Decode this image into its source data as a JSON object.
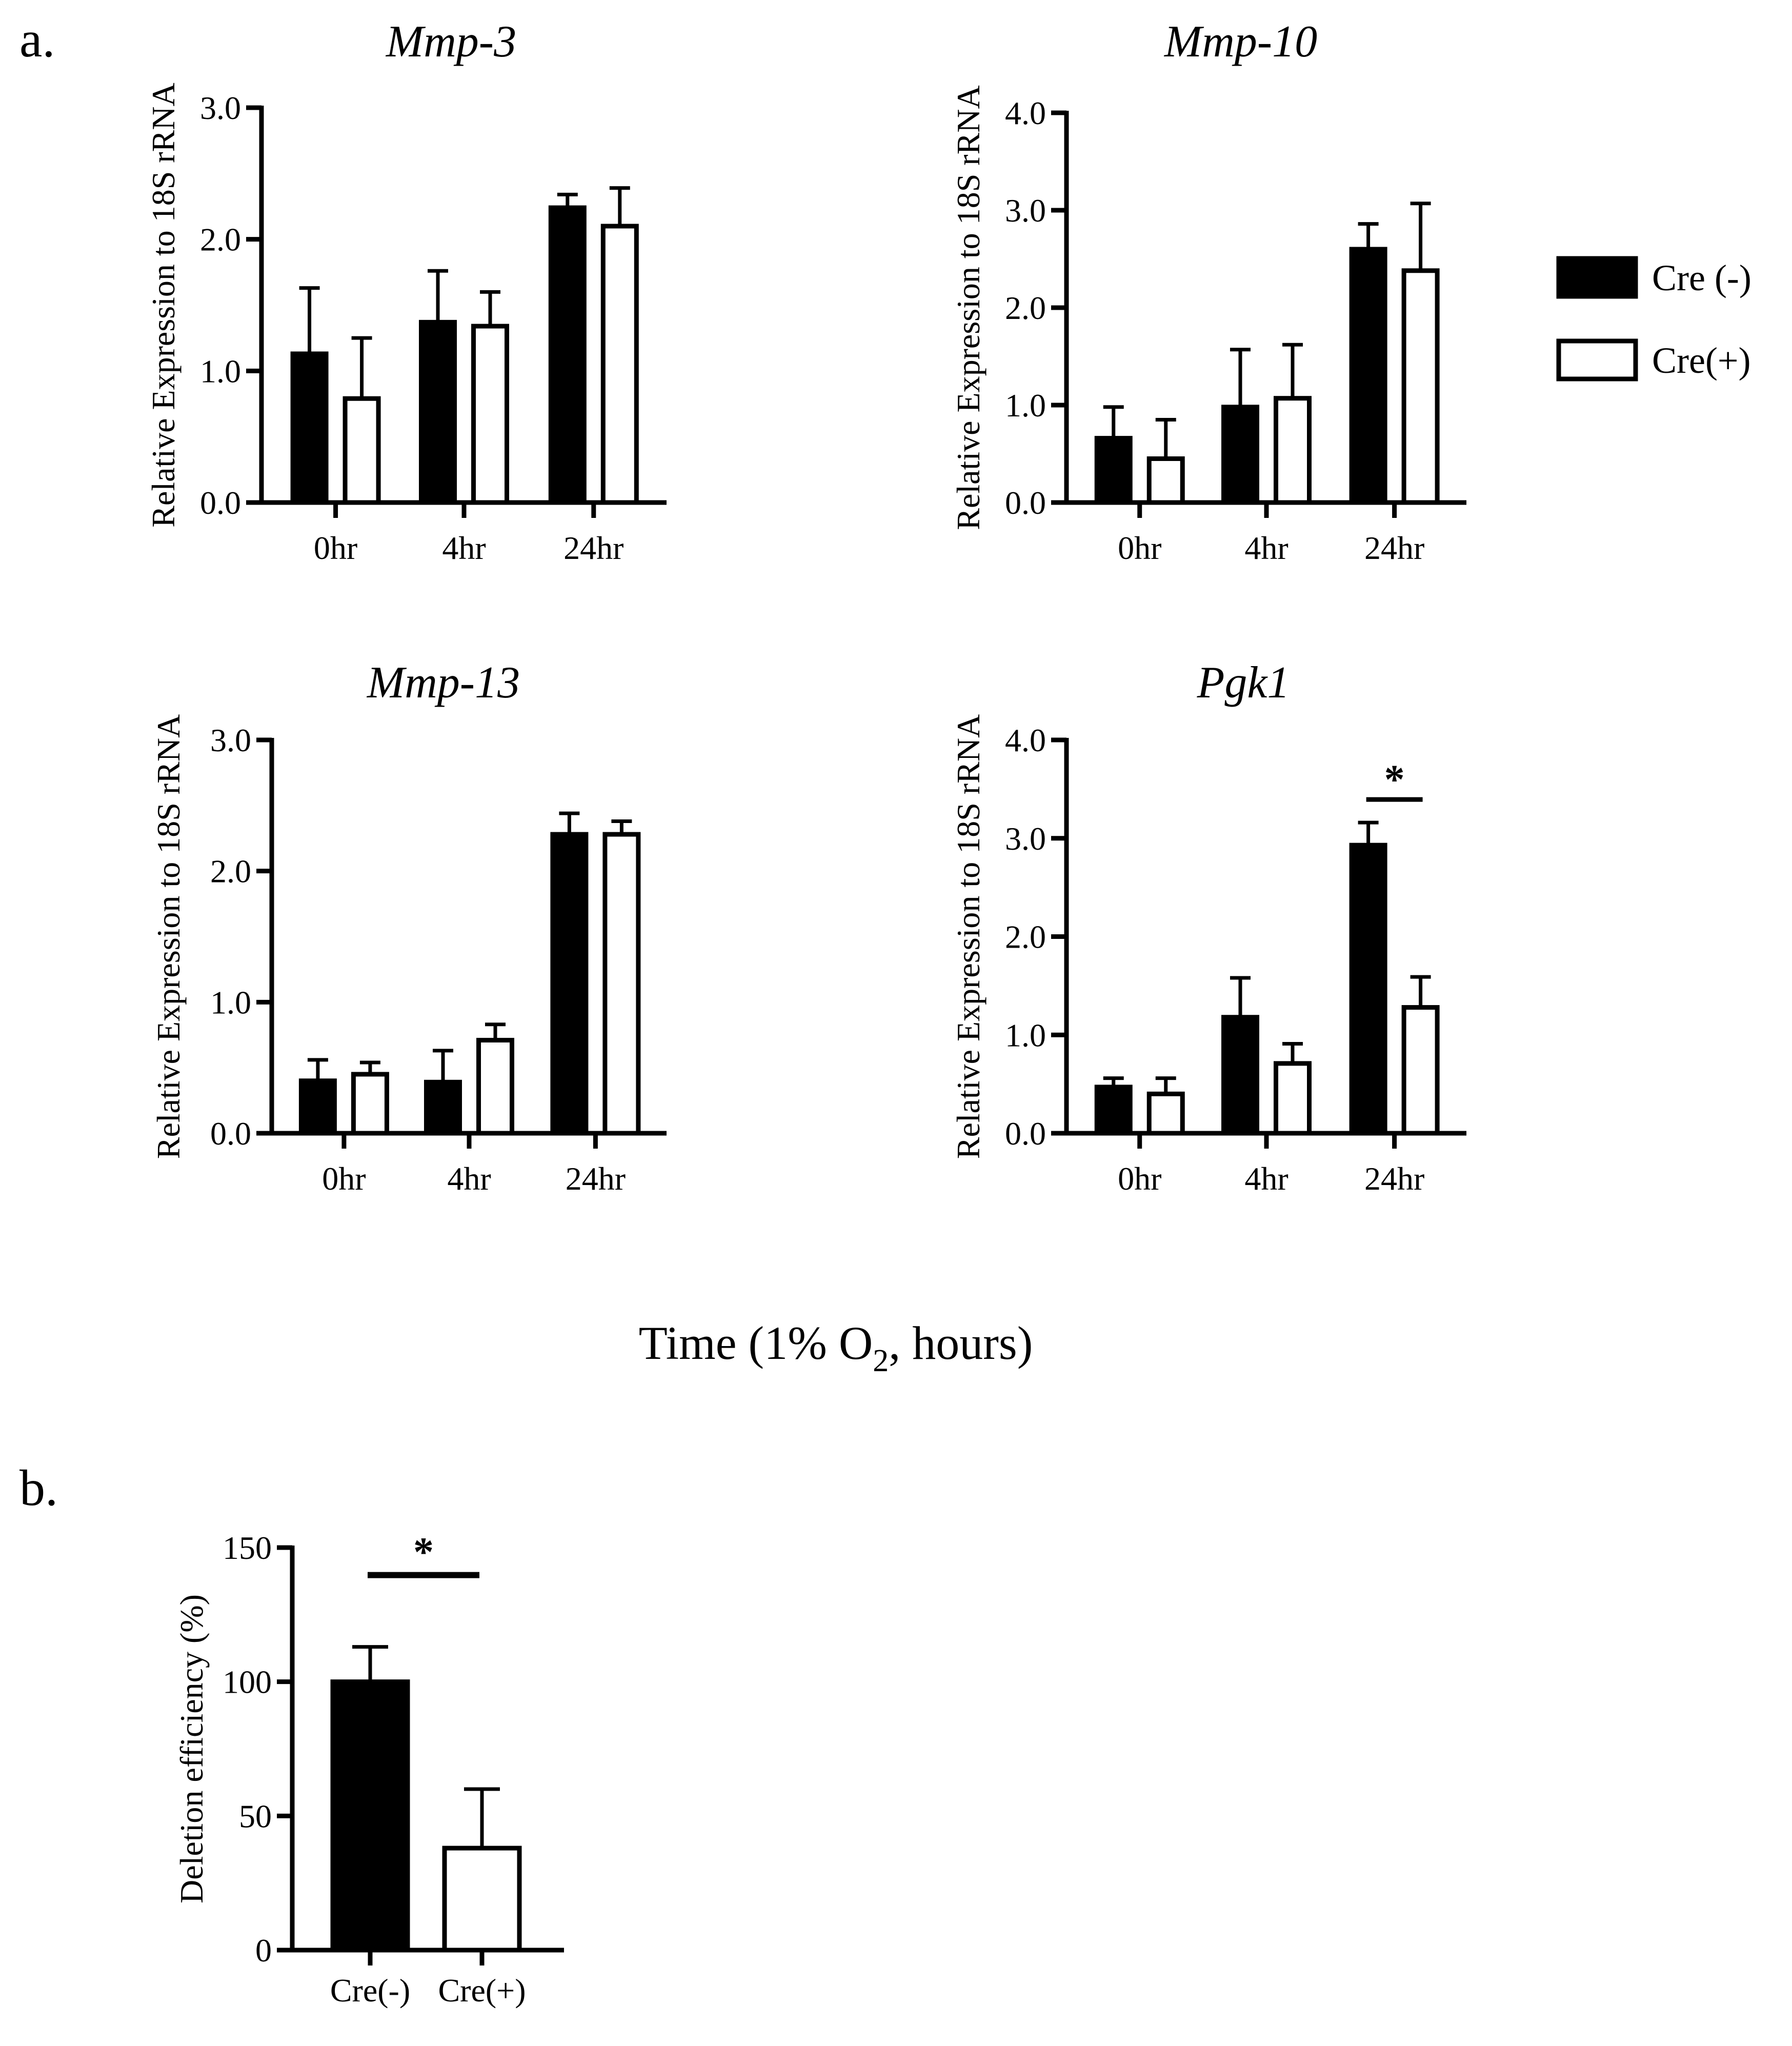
{
  "figure": {
    "panel_a_label": "a.",
    "panel_b_label": "b.",
    "common_xlabel_main": "Time (1% O",
    "common_xlabel_sub": "2",
    "common_xlabel_end": ", hours)"
  },
  "legend": {
    "items": [
      {
        "label": "Cre (-)",
        "fill": "#000000"
      },
      {
        "label": "Cre(+)",
        "fill": "#ffffff"
      }
    ]
  },
  "colors": {
    "cre_minus": "#000000",
    "cre_plus": "#ffffff",
    "stroke": "#000000"
  },
  "chart_data": [
    {
      "id": "mmp3",
      "type": "bar",
      "title": "Mmp-3",
      "ylabel": "Relative Expression to 18S rRNA",
      "xlabel": "",
      "categories": [
        "0hr",
        "4hr",
        "24hr"
      ],
      "ylim": [
        0,
        3
      ],
      "yticks": [
        0,
        1,
        2,
        3
      ],
      "ytick_labels": [
        "0.0",
        "1.0",
        "2.0",
        "3.0"
      ],
      "series": [
        {
          "name": "Cre (-)",
          "values": [
            1.13,
            1.37,
            2.24
          ],
          "errors": [
            0.5,
            0.39,
            0.1
          ]
        },
        {
          "name": "Cre(+)",
          "values": [
            0.79,
            1.34,
            2.1
          ],
          "errors": [
            0.46,
            0.26,
            0.29
          ]
        }
      ],
      "significance": []
    },
    {
      "id": "mmp10",
      "type": "bar",
      "title": "Mmp-10",
      "ylabel": "Relative Expression to 18S rRNA",
      "xlabel": "",
      "categories": [
        "0hr",
        "4hr",
        "24hr"
      ],
      "ylim": [
        0,
        4
      ],
      "yticks": [
        0,
        1,
        2,
        3,
        4
      ],
      "ytick_labels": [
        "0.0",
        "1.0",
        "2.0",
        "3.0",
        "4.0"
      ],
      "series": [
        {
          "name": "Cre (-)",
          "values": [
            0.66,
            0.98,
            2.6
          ],
          "errors": [
            0.32,
            0.59,
            0.26
          ]
        },
        {
          "name": "Cre(+)",
          "values": [
            0.45,
            1.07,
            2.38
          ],
          "errors": [
            0.4,
            0.55,
            0.69
          ]
        }
      ],
      "significance": []
    },
    {
      "id": "mmp13",
      "type": "bar",
      "title": "Mmp-13",
      "ylabel": "Relative Expression to 18S rRNA",
      "xlabel": "",
      "categories": [
        "0hr",
        "4hr",
        "24hr"
      ],
      "ylim": [
        0,
        3
      ],
      "yticks": [
        0,
        1,
        2,
        3
      ],
      "ytick_labels": [
        "0.0",
        "1.0",
        "2.0",
        "3.0"
      ],
      "series": [
        {
          "name": "Cre (-)",
          "values": [
            0.4,
            0.39,
            2.28
          ],
          "errors": [
            0.16,
            0.24,
            0.16
          ]
        },
        {
          "name": "Cre(+)",
          "values": [
            0.45,
            0.71,
            2.28
          ],
          "errors": [
            0.09,
            0.12,
            0.1
          ]
        }
      ],
      "significance": []
    },
    {
      "id": "pgk1",
      "type": "bar",
      "title": "Pgk1",
      "ylabel": "Relative Expression to 18S rRNA",
      "xlabel": "",
      "categories": [
        "0hr",
        "4hr",
        "24hr"
      ],
      "ylim": [
        0,
        4
      ],
      "yticks": [
        0,
        1,
        2,
        3,
        4
      ],
      "ytick_labels": [
        "0.0",
        "1.0",
        "2.0",
        "3.0",
        "4.0"
      ],
      "series": [
        {
          "name": "Cre (-)",
          "values": [
            0.47,
            1.18,
            2.93
          ],
          "errors": [
            0.09,
            0.4,
            0.23
          ]
        },
        {
          "name": "Cre(+)",
          "values": [
            0.4,
            0.71,
            1.28
          ],
          "errors": [
            0.16,
            0.2,
            0.31
          ]
        }
      ],
      "significance": [
        {
          "category": "24hr",
          "label": "*"
        }
      ]
    },
    {
      "id": "deletion",
      "type": "bar",
      "title": "",
      "ylabel": "Deletion efficiency (%)",
      "xlabel": "",
      "categories": [
        "Cre(-)",
        "Cre(+)"
      ],
      "ylim": [
        0,
        150
      ],
      "yticks": [
        0,
        50,
        100,
        150
      ],
      "ytick_labels": [
        "0",
        "50",
        "100",
        "150"
      ],
      "values": [
        100,
        38
      ],
      "errors": [
        13,
        22
      ],
      "significance": [
        {
          "between": [
            "Cre(-)",
            "Cre(+)"
          ],
          "label": "*"
        }
      ]
    }
  ]
}
